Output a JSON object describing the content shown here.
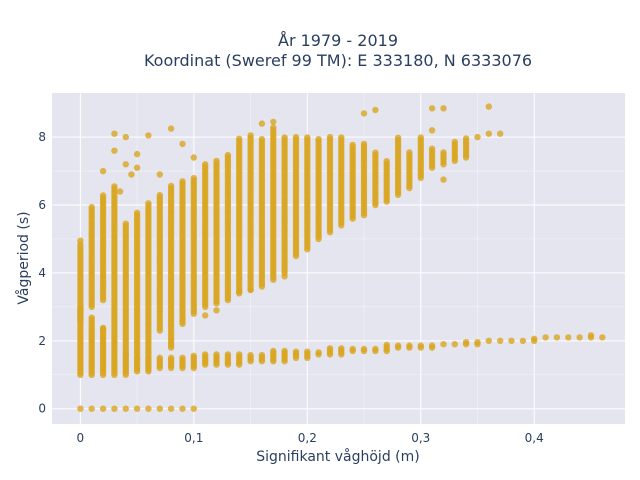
{
  "chart_data": {
    "type": "scatter",
    "title_line1": "År 1979 - 2019",
    "title_line2": "Koordinat (Sweref 99 TM): E 333180, N 6333076",
    "xlabel": "Signifikant våghöjd (m)",
    "ylabel": "Vågperiod (s)",
    "xlim": [
      -0.025,
      0.48
    ],
    "ylim": [
      -0.45,
      9.3
    ],
    "x_ticks": [
      0,
      0.1,
      0.2,
      0.3,
      0.4
    ],
    "x_tick_labels": [
      "0",
      "0,1",
      "0,2",
      "0,3",
      "0,4"
    ],
    "y_ticks": [
      0,
      2,
      4,
      6,
      8
    ],
    "y_tick_labels": [
      "0",
      "2",
      "4",
      "6",
      "8"
    ],
    "grid": true,
    "marker_color": "#DAA520",
    "plot_bg": "#E5E5EF",
    "columns": [
      {
        "x": 0.0,
        "lower": [
          1.0,
          3.0
        ],
        "upper": [
          2.6,
          4.9
        ],
        "zero": true
      },
      {
        "x": 0.01,
        "lower": [
          1.0,
          2.7
        ],
        "upper": [
          3.0,
          6.0
        ],
        "zero": true
      },
      {
        "x": 0.02,
        "lower": [
          1.0,
          2.4
        ],
        "upper": [
          3.2,
          6.3
        ],
        "zero": true
      },
      {
        "x": 0.03,
        "lower": [
          1.0,
          2.0
        ],
        "upper": [
          2.0,
          6.6
        ],
        "zero": true
      },
      {
        "x": 0.04,
        "lower": [
          1.0,
          1.6
        ],
        "upper": [
          1.6,
          5.5
        ],
        "zero": true
      },
      {
        "x": 0.05,
        "lower": [
          1.1,
          1.5
        ],
        "upper": [
          1.5,
          5.8
        ],
        "zero": true
      },
      {
        "x": 0.06,
        "lower": [
          1.1,
          1.5
        ],
        "upper": [
          1.5,
          6.1
        ],
        "zero": true
      },
      {
        "x": 0.07,
        "lower": [
          1.2,
          1.5
        ],
        "upper": [
          2.3,
          6.3
        ],
        "zero": true
      },
      {
        "x": 0.08,
        "lower": [
          1.2,
          1.5
        ],
        "upper": [
          1.8,
          6.6
        ],
        "zero": true
      },
      {
        "x": 0.09,
        "lower": [
          1.2,
          1.5
        ],
        "upper": [
          2.5,
          6.7
        ],
        "zero": true
      },
      {
        "x": 0.1,
        "lower": [
          1.2,
          1.6
        ],
        "upper": [
          2.8,
          6.8
        ],
        "zero": true
      },
      {
        "x": 0.11,
        "lower": [
          1.3,
          1.6
        ],
        "upper": [
          3.0,
          7.2
        ],
        "zero": false
      },
      {
        "x": 0.12,
        "lower": [
          1.3,
          1.6
        ],
        "upper": [
          3.1,
          7.3
        ],
        "zero": false
      },
      {
        "x": 0.13,
        "lower": [
          1.3,
          1.6
        ],
        "upper": [
          3.2,
          7.5
        ],
        "zero": false
      },
      {
        "x": 0.14,
        "lower": [
          1.3,
          1.6
        ],
        "upper": [
          3.4,
          8.0
        ],
        "zero": false
      },
      {
        "x": 0.15,
        "lower": [
          1.4,
          1.6
        ],
        "upper": [
          3.5,
          8.1
        ],
        "zero": false
      },
      {
        "x": 0.16,
        "lower": [
          1.4,
          1.6
        ],
        "upper": [
          3.6,
          8.0
        ],
        "zero": false
      },
      {
        "x": 0.17,
        "lower": [
          1.4,
          1.7
        ],
        "upper": [
          3.8,
          8.3
        ],
        "zero": false
      },
      {
        "x": 0.18,
        "lower": [
          1.4,
          1.7
        ],
        "upper": [
          4.0,
          8.0
        ],
        "zero": false
      },
      {
        "x": 0.19,
        "lower": [
          1.5,
          1.7
        ],
        "upper": [
          4.5,
          8.0
        ],
        "zero": false
      },
      {
        "x": 0.2,
        "lower": [
          1.5,
          1.7
        ],
        "upper": [
          4.7,
          8.0
        ],
        "zero": false
      },
      {
        "x": 0.21,
        "lower": [
          1.6,
          1.7
        ],
        "upper": [
          5.0,
          8.0
        ],
        "zero": false
      },
      {
        "x": 0.22,
        "lower": [
          1.6,
          1.8
        ],
        "upper": [
          5.2,
          8.0
        ],
        "zero": false
      },
      {
        "x": 0.23,
        "lower": [
          1.6,
          1.8
        ],
        "upper": [
          5.4,
          8.0
        ],
        "zero": false
      },
      {
        "x": 0.24,
        "lower": [
          1.7,
          1.8
        ],
        "upper": [
          5.6,
          7.8
        ],
        "zero": false
      },
      {
        "x": 0.25,
        "lower": [
          1.7,
          1.8
        ],
        "upper": [
          5.7,
          7.8
        ],
        "zero": false
      },
      {
        "x": 0.26,
        "lower": [
          1.7,
          1.8
        ],
        "upper": [
          6.0,
          7.6
        ],
        "zero": false
      },
      {
        "x": 0.27,
        "lower": [
          1.7,
          1.9
        ],
        "upper": [
          6.1,
          7.3
        ],
        "zero": false
      },
      {
        "x": 0.28,
        "lower": [
          1.8,
          1.9
        ],
        "upper": [
          6.3,
          8.0
        ],
        "zero": false
      },
      {
        "x": 0.29,
        "lower": [
          1.8,
          1.9
        ],
        "upper": [
          6.5,
          7.6
        ],
        "zero": false
      },
      {
        "x": 0.3,
        "lower": [
          1.8,
          1.9
        ],
        "upper": [
          6.8,
          8.0
        ],
        "zero": false
      },
      {
        "x": 0.31,
        "lower": [
          1.8,
          1.9
        ],
        "upper": [
          7.1,
          7.7
        ],
        "zero": false
      },
      {
        "x": 0.32,
        "lower": [
          1.9,
          1.9
        ],
        "upper": [
          7.2,
          7.6
        ],
        "zero": false
      },
      {
        "x": 0.33,
        "lower": [
          1.9,
          1.9
        ],
        "upper": [
          7.3,
          7.9
        ],
        "zero": false
      },
      {
        "x": 0.34,
        "lower": [
          1.9,
          2.0
        ],
        "upper": [
          7.4,
          8.0
        ],
        "zero": false
      },
      {
        "x": 0.35,
        "lower": [
          1.9,
          2.0
        ],
        "upper": [
          8.0,
          8.0
        ],
        "zero": false
      },
      {
        "x": 0.36,
        "lower": [
          2.0,
          2.0
        ],
        "upper": [
          8.1,
          8.1
        ],
        "zero": false
      },
      {
        "x": 0.37,
        "lower": [
          2.0,
          2.0
        ],
        "upper": [
          8.1,
          8.1
        ],
        "zero": false
      },
      {
        "x": 0.38,
        "lower": [
          2.0,
          2.0
        ],
        "upper": null,
        "zero": false
      },
      {
        "x": 0.39,
        "lower": [
          2.0,
          2.0
        ],
        "upper": null,
        "zero": false
      },
      {
        "x": 0.4,
        "lower": [
          2.0,
          2.1
        ],
        "upper": null,
        "zero": false
      },
      {
        "x": 0.41,
        "lower": [
          2.1,
          2.1
        ],
        "upper": null,
        "zero": false
      },
      {
        "x": 0.42,
        "lower": [
          2.1,
          2.1
        ],
        "upper": null,
        "zero": false
      },
      {
        "x": 0.43,
        "lower": [
          2.1,
          2.1
        ],
        "upper": null,
        "zero": false
      },
      {
        "x": 0.44,
        "lower": [
          2.1,
          2.1
        ],
        "upper": null,
        "zero": false
      },
      {
        "x": 0.45,
        "lower": [
          2.1,
          2.2
        ],
        "upper": null,
        "zero": false
      },
      {
        "x": 0.46,
        "lower": [
          2.1,
          2.1
        ],
        "upper": null,
        "zero": false
      }
    ],
    "outliers": [
      {
        "x": 0.03,
        "y": 8.1
      },
      {
        "x": 0.04,
        "y": 8.0
      },
      {
        "x": 0.03,
        "y": 7.6
      },
      {
        "x": 0.02,
        "y": 7.0
      },
      {
        "x": 0.05,
        "y": 7.5
      },
      {
        "x": 0.06,
        "y": 8.05
      },
      {
        "x": 0.08,
        "y": 8.25
      },
      {
        "x": 0.04,
        "y": 7.2
      },
      {
        "x": 0.05,
        "y": 7.1
      },
      {
        "x": 0.07,
        "y": 6.9
      },
      {
        "x": 0.09,
        "y": 7.8
      },
      {
        "x": 0.1,
        "y": 7.4
      },
      {
        "x": 0.16,
        "y": 8.4
      },
      {
        "x": 0.17,
        "y": 8.45
      },
      {
        "x": 0.25,
        "y": 8.7
      },
      {
        "x": 0.26,
        "y": 8.8
      },
      {
        "x": 0.31,
        "y": 8.85
      },
      {
        "x": 0.32,
        "y": 8.85
      },
      {
        "x": 0.36,
        "y": 8.9
      },
      {
        "x": 0.31,
        "y": 8.2
      },
      {
        "x": 0.32,
        "y": 6.75
      },
      {
        "x": 0.11,
        "y": 2.75
      },
      {
        "x": 0.14,
        "y": 3.45
      },
      {
        "x": 0.15,
        "y": 3.5
      },
      {
        "x": 0.18,
        "y": 3.9
      },
      {
        "x": 0.0,
        "y": 4.95
      },
      {
        "x": 0.02,
        "y": 2.35
      },
      {
        "x": 0.035,
        "y": 6.4
      },
      {
        "x": 0.045,
        "y": 6.9
      },
      {
        "x": 0.12,
        "y": 2.9
      }
    ]
  }
}
